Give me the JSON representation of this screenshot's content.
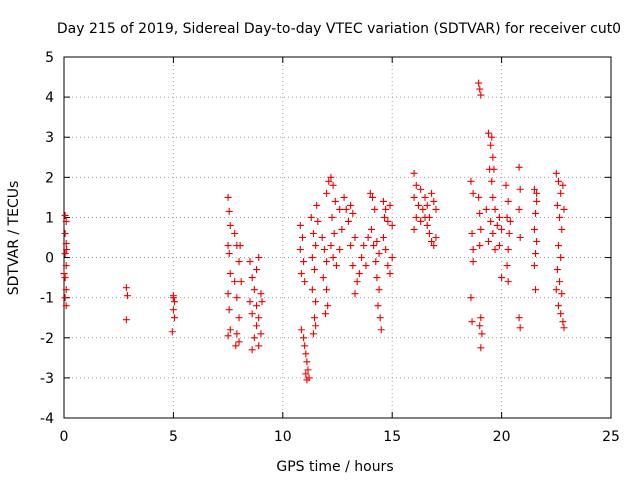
{
  "chart_data": {
    "type": "scatter",
    "title": "Day 215 of 2019, Sidereal Day-to-day VTEC variation (SDTVAR) for receiver cut0",
    "xlabel": "GPS time / hours",
    "ylabel": "SDTVAR / TECUs",
    "xlim": [
      0,
      25
    ],
    "ylim": [
      -4,
      5
    ],
    "xticks": [
      "0",
      "5",
      "10",
      "15",
      "20",
      "25"
    ],
    "yticks": [
      "-4",
      "-3",
      "-2",
      "-1",
      "0",
      "1",
      "2",
      "3",
      "4",
      "5"
    ],
    "grid": true,
    "marker": "plus",
    "color": "#ee0000",
    "series": [
      {
        "name": "SDTVAR",
        "points": [
          [
            0.05,
            1.05
          ],
          [
            0.1,
            0.9
          ],
          [
            0.05,
            0.6
          ],
          [
            0.1,
            0.35
          ],
          [
            0.05,
            0.1
          ],
          [
            0.1,
            -0.2
          ],
          [
            0.05,
            -0.5
          ],
          [
            0.1,
            -0.8
          ],
          [
            0.05,
            -1.0
          ],
          [
            0.1,
            -1.2
          ],
          [
            0.0,
            -0.4
          ],
          [
            0.12,
            0.2
          ],
          [
            2.85,
            -0.75
          ],
          [
            2.9,
            -0.95
          ],
          [
            2.85,
            -1.55
          ],
          [
            5.0,
            -0.95
          ],
          [
            5.05,
            -1.1
          ],
          [
            5.0,
            -1.3
          ],
          [
            5.05,
            -1.5
          ],
          [
            4.95,
            -1.85
          ],
          [
            5.0,
            -1.0
          ],
          [
            7.5,
            1.5
          ],
          [
            7.55,
            1.15
          ],
          [
            7.6,
            0.8
          ],
          [
            7.5,
            0.3
          ],
          [
            7.55,
            0.1
          ],
          [
            7.6,
            -0.4
          ],
          [
            7.5,
            -0.9
          ],
          [
            7.55,
            -1.3
          ],
          [
            7.6,
            -1.8
          ],
          [
            7.5,
            -1.95
          ],
          [
            7.8,
            0.6
          ],
          [
            7.9,
            0.3
          ],
          [
            8.0,
            -0.1
          ],
          [
            7.8,
            -0.6
          ],
          [
            7.9,
            -1.0
          ],
          [
            8.0,
            -1.5
          ],
          [
            7.9,
            -1.9
          ],
          [
            8.0,
            -2.1
          ],
          [
            7.85,
            -2.2
          ],
          [
            8.1,
            -0.6
          ],
          [
            8.05,
            0.3
          ],
          [
            8.5,
            -0.1
          ],
          [
            8.6,
            -0.5
          ],
          [
            8.7,
            -0.8
          ],
          [
            8.5,
            -1.1
          ],
          [
            8.6,
            -1.4
          ],
          [
            8.8,
            -1.7
          ],
          [
            8.7,
            -2.0
          ],
          [
            8.9,
            -2.2
          ],
          [
            8.8,
            -1.2
          ],
          [
            9.0,
            -0.9
          ],
          [
            8.9,
            -1.5
          ],
          [
            9.0,
            -1.9
          ],
          [
            8.8,
            -0.3
          ],
          [
            8.9,
            0.0
          ],
          [
            8.6,
            -2.3
          ],
          [
            9.05,
            -1.1
          ],
          [
            10.8,
            0.8
          ],
          [
            10.9,
            0.5
          ],
          [
            10.8,
            0.2
          ],
          [
            10.95,
            -0.1
          ],
          [
            10.85,
            -0.4
          ],
          [
            11.0,
            -0.6
          ],
          [
            10.85,
            -1.8
          ],
          [
            10.95,
            -2.0
          ],
          [
            11.0,
            -2.2
          ],
          [
            11.05,
            -2.4
          ],
          [
            11.1,
            -2.6
          ],
          [
            11.15,
            -2.8
          ],
          [
            11.2,
            -3.0
          ],
          [
            11.1,
            -3.05
          ],
          [
            11.05,
            -2.9
          ],
          [
            11.3,
            1.0
          ],
          [
            11.4,
            0.6
          ],
          [
            11.5,
            0.3
          ],
          [
            11.35,
            0.0
          ],
          [
            11.45,
            -0.3
          ],
          [
            11.35,
            -0.8
          ],
          [
            11.5,
            -1.1
          ],
          [
            11.45,
            -1.5
          ],
          [
            11.4,
            -1.9
          ],
          [
            11.5,
            -1.7
          ],
          [
            11.55,
            1.3
          ],
          [
            11.6,
            0.9
          ],
          [
            11.8,
            0.5
          ],
          [
            11.9,
            0.2
          ],
          [
            12.0,
            -0.1
          ],
          [
            11.85,
            -0.5
          ],
          [
            12.0,
            -0.8
          ],
          [
            12.05,
            -1.2
          ],
          [
            11.95,
            -1.4
          ],
          [
            12.0,
            1.6
          ],
          [
            12.1,
            1.9
          ],
          [
            12.2,
            2.0
          ],
          [
            12.3,
            1.8
          ],
          [
            12.4,
            1.4
          ],
          [
            12.25,
            1.0
          ],
          [
            12.35,
            0.6
          ],
          [
            12.2,
            0.3
          ],
          [
            12.3,
            0.0
          ],
          [
            12.45,
            -0.2
          ],
          [
            12.6,
            0.2
          ],
          [
            12.7,
            0.7
          ],
          [
            12.6,
            1.2
          ],
          [
            12.8,
            1.5
          ],
          [
            12.9,
            1.2
          ],
          [
            13.0,
            0.9
          ],
          [
            13.1,
            1.3
          ],
          [
            13.2,
            1.1
          ],
          [
            13.3,
            0.5
          ],
          [
            13.1,
            0.3
          ],
          [
            13.2,
            -0.2
          ],
          [
            13.4,
            -0.6
          ],
          [
            13.3,
            -0.9
          ],
          [
            13.5,
            -0.4
          ],
          [
            13.6,
            0.0
          ],
          [
            13.7,
            0.3
          ],
          [
            13.8,
            -0.2
          ],
          [
            13.9,
            0.5
          ],
          [
            14.0,
            1.6
          ],
          [
            14.1,
            1.5
          ],
          [
            14.2,
            1.2
          ],
          [
            14.05,
            0.7
          ],
          [
            14.15,
            0.3
          ],
          [
            14.25,
            -0.1
          ],
          [
            14.3,
            -0.5
          ],
          [
            14.4,
            -0.8
          ],
          [
            14.35,
            -1.2
          ],
          [
            14.45,
            -1.5
          ],
          [
            14.5,
            -1.8
          ],
          [
            14.4,
            0.1
          ],
          [
            14.3,
            0.4
          ],
          [
            14.6,
            1.4
          ],
          [
            14.7,
            1.2
          ],
          [
            14.8,
            0.9
          ],
          [
            14.6,
            0.5
          ],
          [
            14.7,
            0.2
          ],
          [
            14.8,
            -0.2
          ],
          [
            14.9,
            -0.4
          ],
          [
            15.0,
            0.0
          ],
          [
            14.65,
            1.0
          ],
          [
            14.9,
            1.3
          ],
          [
            15.0,
            0.8
          ],
          [
            16.0,
            2.1
          ],
          [
            16.1,
            1.8
          ],
          [
            16.0,
            1.5
          ],
          [
            16.2,
            1.3
          ],
          [
            16.1,
            1.0
          ],
          [
            16.0,
            0.7
          ],
          [
            16.3,
            0.9
          ],
          [
            16.4,
            1.2
          ],
          [
            16.5,
            1.5
          ],
          [
            16.6,
            1.3
          ],
          [
            16.7,
            1.0
          ],
          [
            16.8,
            1.6
          ],
          [
            16.9,
            1.4
          ],
          [
            17.0,
            1.2
          ],
          [
            16.6,
            0.8
          ],
          [
            16.8,
            0.4
          ],
          [
            16.9,
            0.3
          ],
          [
            17.0,
            0.5
          ],
          [
            16.7,
            0.6
          ],
          [
            16.5,
            1.0
          ],
          [
            16.3,
            1.7
          ],
          [
            18.6,
            1.9
          ],
          [
            18.7,
            1.6
          ],
          [
            18.65,
            0.6
          ],
          [
            18.7,
            0.2
          ],
          [
            18.6,
            -1.0
          ],
          [
            18.65,
            -1.6
          ],
          [
            18.7,
            -0.1
          ],
          [
            18.95,
            4.35
          ],
          [
            19.0,
            4.2
          ],
          [
            19.05,
            4.05
          ],
          [
            18.95,
            1.5
          ],
          [
            19.0,
            1.1
          ],
          [
            19.05,
            0.7
          ],
          [
            19.0,
            0.3
          ],
          [
            19.05,
            -1.5
          ],
          [
            19.1,
            -1.9
          ],
          [
            19.05,
            -2.25
          ],
          [
            19.0,
            -1.7
          ],
          [
            19.4,
            3.1
          ],
          [
            19.5,
            2.8
          ],
          [
            19.6,
            2.5
          ],
          [
            19.45,
            2.2
          ],
          [
            19.55,
            1.9
          ],
          [
            19.6,
            1.5
          ],
          [
            19.7,
            1.2
          ],
          [
            19.5,
            0.9
          ],
          [
            19.6,
            0.6
          ],
          [
            19.4,
            0.4
          ],
          [
            19.3,
            1.2
          ],
          [
            19.8,
            0.8
          ],
          [
            19.9,
            1.0
          ],
          [
            20.0,
            0.7
          ],
          [
            19.9,
            0.3
          ],
          [
            19.7,
            0.2
          ],
          [
            19.55,
            3.0
          ],
          [
            19.65,
            2.2
          ],
          [
            20.0,
            -0.5
          ],
          [
            20.2,
            1.8
          ],
          [
            20.3,
            1.4
          ],
          [
            20.25,
            1.0
          ],
          [
            20.35,
            0.6
          ],
          [
            20.3,
            0.2
          ],
          [
            20.25,
            -0.2
          ],
          [
            20.3,
            -0.6
          ],
          [
            20.4,
            0.9
          ],
          [
            20.8,
            2.25
          ],
          [
            20.85,
            1.7
          ],
          [
            20.8,
            1.2
          ],
          [
            20.85,
            0.5
          ],
          [
            20.8,
            -1.5
          ],
          [
            20.85,
            -1.75
          ],
          [
            21.5,
            1.7
          ],
          [
            21.6,
            1.4
          ],
          [
            21.55,
            1.1
          ],
          [
            21.5,
            0.7
          ],
          [
            21.6,
            0.4
          ],
          [
            21.55,
            0.1
          ],
          [
            21.5,
            -0.2
          ],
          [
            21.55,
            -0.8
          ],
          [
            21.6,
            1.6
          ],
          [
            22.5,
            2.1
          ],
          [
            22.6,
            1.9
          ],
          [
            22.7,
            1.6
          ],
          [
            22.55,
            1.3
          ],
          [
            22.65,
            1.0
          ],
          [
            22.75,
            0.7
          ],
          [
            22.6,
            0.3
          ],
          [
            22.7,
            0.0
          ],
          [
            22.55,
            -0.3
          ],
          [
            22.65,
            -0.6
          ],
          [
            22.75,
            -0.9
          ],
          [
            22.6,
            -1.2
          ],
          [
            22.7,
            -1.4
          ],
          [
            22.8,
            -1.6
          ],
          [
            22.85,
            -1.75
          ],
          [
            22.8,
            1.8
          ],
          [
            22.85,
            1.2
          ],
          [
            22.5,
            -0.8
          ]
        ]
      }
    ]
  }
}
